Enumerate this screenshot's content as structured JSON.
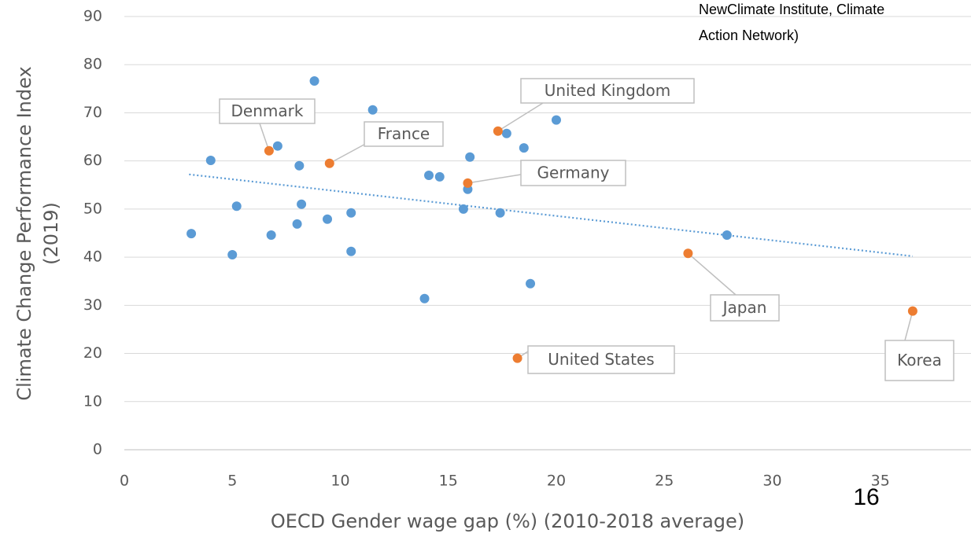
{
  "chart_data": {
    "type": "scatter",
    "xlabel": "OECD Gender wage gap (%)   (2010-2018 average)",
    "ylabel": [
      "Climate Change Performance Index",
      "(2019)"
    ],
    "source_note": [
      "NewClimate Institute, Climate",
      "Action Network)"
    ],
    "page_number": "16",
    "xlim": [
      0,
      39.2
    ],
    "xticks": [
      0,
      5,
      10,
      15,
      20,
      25,
      30,
      35
    ],
    "ylim": [
      0,
      90
    ],
    "yticks": [
      0,
      10,
      20,
      30,
      40,
      50,
      60,
      70,
      80,
      90
    ],
    "grid": true,
    "series": [
      {
        "color": "#5b9bd5",
        "x": [
          3.1,
          4.0,
          5.2,
          5.0,
          7.1,
          6.8,
          8.1,
          8.2,
          8.0,
          8.8,
          9.4,
          10.5,
          10.5,
          11.5,
          14.1,
          14.6,
          13.9,
          15.7,
          16.0,
          15.9,
          17.4,
          17.7,
          18.5,
          18.8,
          20.0,
          27.9
        ],
        "values": [
          44.9,
          60.1,
          50.6,
          40.5,
          63.1,
          44.6,
          59.0,
          51.0,
          46.9,
          76.6,
          47.9,
          49.2,
          41.2,
          70.6,
          57.0,
          56.7,
          31.4,
          50.0,
          60.8,
          54.1,
          49.2,
          65.7,
          62.7,
          34.5,
          68.5,
          44.6
        ]
      },
      {
        "color": "#ed7d31",
        "x": [
          6.7,
          9.5,
          17.3,
          15.9,
          26.1,
          18.2,
          36.5
        ],
        "values": [
          62.1,
          59.5,
          66.2,
          55.4,
          40.8,
          19.0,
          28.8
        ],
        "labels": [
          "Denmark",
          "France",
          "United Kingdom",
          "Germany",
          "Japan",
          "United States",
          "Korea"
        ]
      }
    ],
    "trendline": {
      "color": "#5b9bd5",
      "x": [
        3.0,
        36.5
      ],
      "values": [
        57.2,
        40.2
      ]
    }
  }
}
